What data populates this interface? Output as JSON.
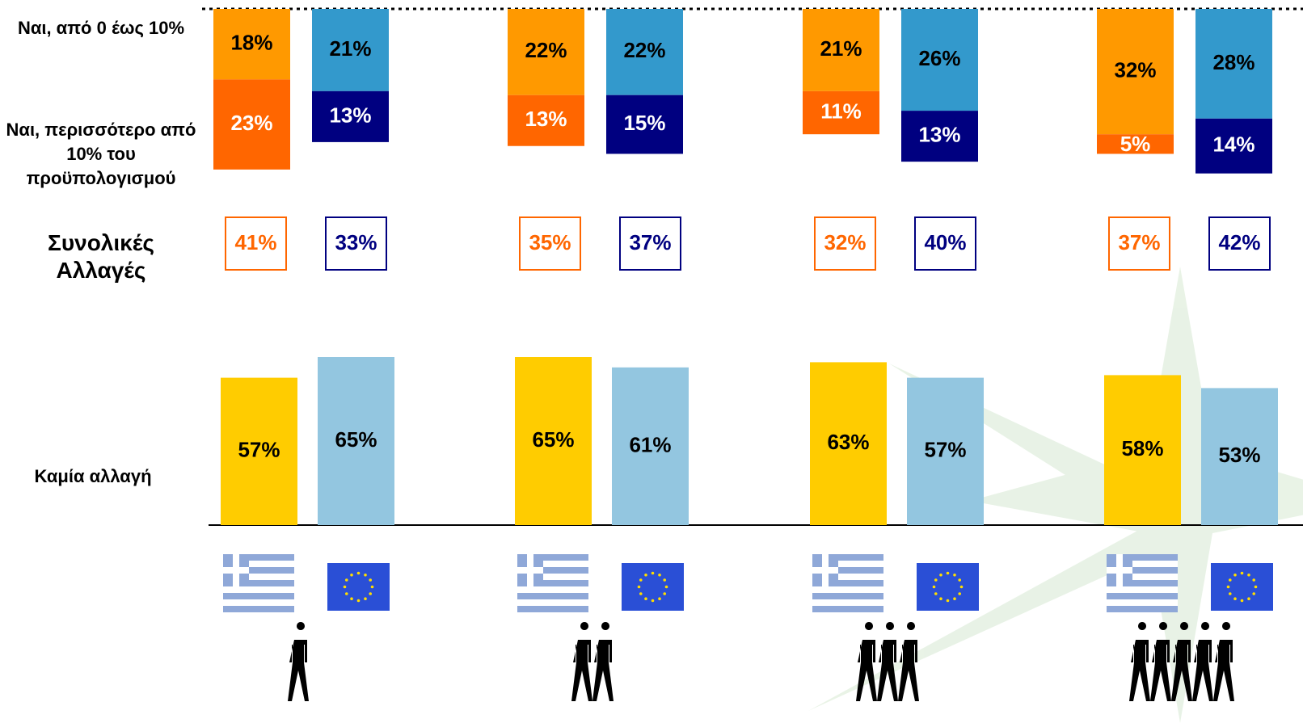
{
  "chart_data": {
    "type": "stacked-bar",
    "rows": [
      "Ναι, από 0 έως 10%",
      "Ναι, περισσότερο από 10% του προϋπολογισμού",
      "Συνολικές Αλλαγές",
      "Καμία αλλαγή"
    ],
    "greece": {
      "small": {
        "color": "#ff9900",
        "values": [
          18,
          22,
          21,
          32
        ],
        "value_labels": [
          "18%",
          "22%",
          "21%",
          "32%"
        ]
      },
      "large": {
        "color": "#ff6600",
        "values": [
          23,
          13,
          11,
          5
        ],
        "value_labels": [
          "23%",
          "13%",
          "11%",
          "5%"
        ]
      },
      "total": {
        "color": "#ff6600",
        "values": [
          41,
          35,
          32,
          37
        ],
        "value_labels": [
          "41%",
          "35%",
          "32%",
          "37%"
        ]
      },
      "none": {
        "color": "#ffcc00",
        "values": [
          57,
          65,
          63,
          58
        ],
        "value_labels": [
          "57%",
          "65%",
          "63%",
          "58%"
        ]
      }
    },
    "eu": {
      "small": {
        "color": "#3399cc",
        "values": [
          21,
          22,
          26,
          28
        ],
        "value_labels": [
          "21%",
          "22%",
          "26%",
          "28%"
        ]
      },
      "large": {
        "color": "#000080",
        "values": [
          13,
          15,
          13,
          14
        ],
        "value_labels": [
          "13%",
          "15%",
          "13%",
          "14%"
        ]
      },
      "total": {
        "color": "#000080",
        "values": [
          33,
          37,
          40,
          42
        ],
        "value_labels": [
          "33%",
          "37%",
          "40%",
          "42%"
        ]
      },
      "none": {
        "color": "#93c6e0",
        "values": [
          65,
          61,
          57,
          53
        ],
        "value_labels": [
          "65%",
          "61%",
          "57%",
          "53%"
        ]
      }
    }
  }
}
